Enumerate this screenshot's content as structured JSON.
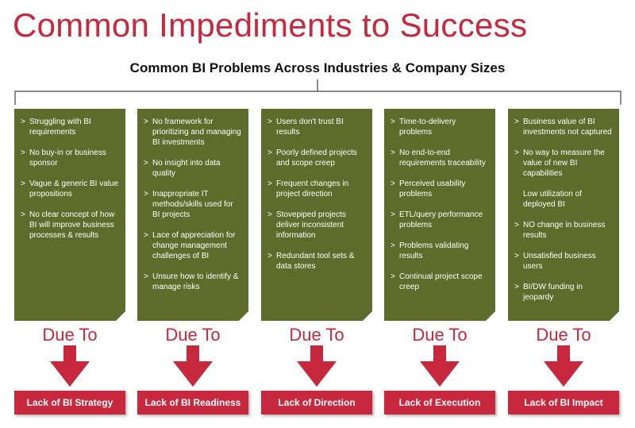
{
  "title": "Common Impediments to Success",
  "subtitle": "Common BI Problems Across Industries & Company Sizes",
  "connector_label": "Due To",
  "columns": [
    {
      "items": [
        {
          "text": "Struggling with BI requirements",
          "marker": true
        },
        {
          "text": "No buy-in or business sponsor",
          "marker": true
        },
        {
          "text": "Vague & generic BI value propositions",
          "marker": true
        },
        {
          "text": "No clear concept of how BI will improve business processes & results",
          "marker": true
        }
      ],
      "outcome": "Lack of BI Strategy"
    },
    {
      "items": [
        {
          "text": "No framework for prioritizing and managing BI investments",
          "marker": true
        },
        {
          "text": "No insight into data quality",
          "marker": true
        },
        {
          "text": "Inappropriate IT methods/skills used for BI projects",
          "marker": true
        },
        {
          "text": "Lace of appreciation for change management challenges of BI",
          "marker": true
        },
        {
          "text": "Unsure how to identify & manage risks",
          "marker": true
        }
      ],
      "outcome": "Lack of BI Readiness"
    },
    {
      "items": [
        {
          "text": "Users don't trust BI results",
          "marker": true
        },
        {
          "text": "Poorly defined projects and scope creep",
          "marker": true
        },
        {
          "text": "Frequent changes in project direction",
          "marker": true
        },
        {
          "text": "Stovepiped projects deliver inconsistent information",
          "marker": true
        },
        {
          "text": "Redundant tool sets & data stores",
          "marker": true
        }
      ],
      "outcome": "Lack of Direction"
    },
    {
      "items": [
        {
          "text": "Time-to-delivery problems",
          "marker": true
        },
        {
          "text": "No end-to-end requirements traceability",
          "marker": true
        },
        {
          "text": "Perceived usability problems",
          "marker": true
        },
        {
          "text": "ETL/query performance problems",
          "marker": true
        },
        {
          "text": "Problems validating results",
          "marker": true
        },
        {
          "text": "Continual project scope creep",
          "marker": true
        }
      ],
      "outcome": "Lack of Execution"
    },
    {
      "items": [
        {
          "text": "Business value of BI investments not captured",
          "marker": true
        },
        {
          "text": "No way to measure the value of new BI capabilities",
          "marker": true
        },
        {
          "text": "Low utilization of deployed BI",
          "marker": false
        },
        {
          "text": "NO change in business results",
          "marker": true
        },
        {
          "text": "Unsatisfied business users",
          "marker": true
        },
        {
          "text": "BI/DW funding in jeopardy",
          "marker": true
        }
      ],
      "outcome": "Lack of BI Impact"
    }
  ],
  "colors": {
    "accent_red": "#c8283e",
    "box_green": "#5e6b2a",
    "text_dark": "#111111"
  }
}
